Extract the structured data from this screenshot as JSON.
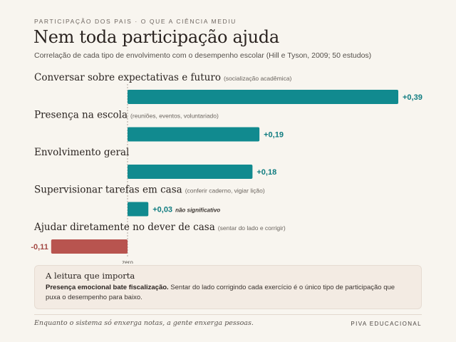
{
  "header": {
    "kicker": "PARTICIPAÇÃO DOS PAIS · O QUE A CIÊNCIA MEDIU",
    "title": "Nem toda participação ajuda",
    "subtitle": "Correlação de cada tipo de envolvimento com o desempenho escolar (Hill e Tyson, 2009; 50 estudos)"
  },
  "chart_data": {
    "type": "bar",
    "orientation": "horizontal",
    "categories": [
      "Conversar sobre expectativas e futuro",
      "Presença na escola",
      "Envolvimento geral",
      "Supervisionar tarefas em casa",
      "Ajudar diretamente no dever de casa"
    ],
    "notes": [
      "(socialização acadêmica)",
      "(reuniões, eventos, voluntariado)",
      "",
      "(conferir caderno, vigiar lição)",
      "(sentar do lado e corrigir)"
    ],
    "values": [
      0.39,
      0.19,
      0.18,
      0.03,
      -0.11
    ],
    "value_labels": [
      "+0,39",
      "+0,19",
      "+0,18",
      "+0,03",
      "-0,11"
    ],
    "value_notes": [
      "",
      "",
      "",
      "não significativo",
      ""
    ],
    "zero_label": "zero",
    "xlim": [
      -0.13,
      0.39
    ],
    "colors": {
      "positive": "#118a8f",
      "negative": "#b8544f",
      "positive_text": "#0f7c80",
      "negative_text": "#a34843"
    }
  },
  "callout": {
    "title": "A leitura que importa",
    "bold": "Presença emocional bate fiscalização.",
    "body": " Sentar do lado corrigindo cada exercício é o único tipo de participação que puxa o desempenho para baixo."
  },
  "footer": {
    "left": "Enquanto o sistema só enxerga notas, a gente enxerga pessoas.",
    "right": "PIVA EDUCACIONAL"
  }
}
